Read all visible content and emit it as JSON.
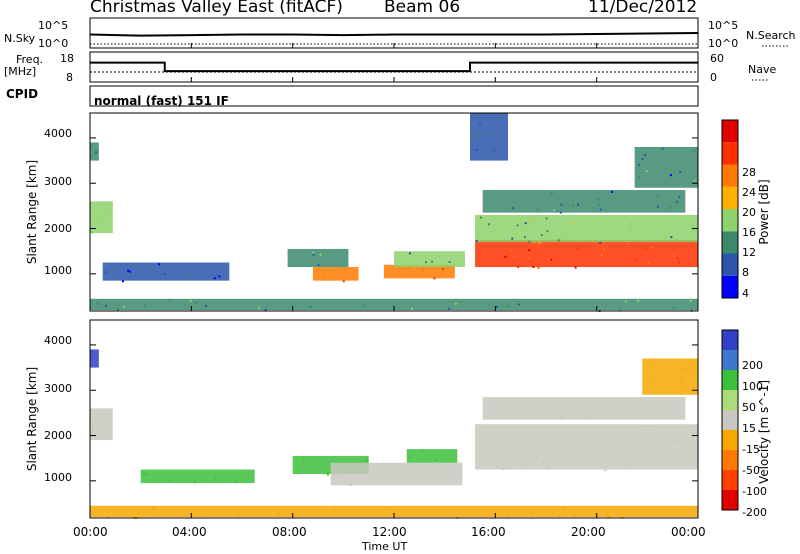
{
  "header": {
    "station": "Christmas Valley East (fitACF)",
    "beam": "Beam 06",
    "date": "11/Dec/2012"
  },
  "colors": {
    "power_scale": [
      "#0000ff",
      "#2a55a8",
      "#3b8a6c",
      "#8dd26c",
      "#ffb000",
      "#ff7a00",
      "#ff3000",
      "#e00000"
    ],
    "velocity_scale": [
      "#3040c8",
      "#3c78cc",
      "#3cc03c",
      "#aadc78",
      "#c8c8c0",
      "#f5a800",
      "#ff7800",
      "#ff4000",
      "#e00000"
    ]
  },
  "chart_data": [
    {
      "panel": "noise",
      "type": "line",
      "left_label": "N.Sky",
      "right_label": "N.Search",
      "left_ticks": [
        "10^5",
        "10^0"
      ],
      "right_ticks": [
        "10^5",
        "10^0"
      ],
      "x": [
        0,
        2,
        4,
        6,
        8,
        10,
        12,
        14,
        15,
        16,
        18,
        20,
        22,
        24
      ],
      "series": [
        {
          "values": [
            2.2,
            2.0,
            2.1,
            2.2,
            2.2,
            2.1,
            2.2,
            2.2,
            2.2,
            2.2,
            2.2,
            2.3,
            2.4,
            2.5
          ]
        }
      ]
    },
    {
      "panel": "frequency",
      "type": "line",
      "left_label_line1": "Freq.",
      "left_label_line2": "[MHz]",
      "right_label": "Nave",
      "left_ticks": [
        18,
        8
      ],
      "right_ticks": [
        60,
        0
      ],
      "ylim": [
        8,
        18
      ],
      "x": [
        0,
        2.95,
        2.95,
        15.0,
        15.0,
        24
      ],
      "series": [
        {
          "values": [
            14.7,
            14.7,
            11.4,
            11.4,
            14.7,
            14.7
          ]
        }
      ]
    },
    {
      "panel": "cpid",
      "type": "table",
      "left_label": "CPID",
      "mode": "normal (fast) 151 IF"
    },
    {
      "panel": "power",
      "type": "heatmap",
      "ylabel": "Slant Range [km]",
      "yticks": [
        1000,
        2000,
        3000,
        4000
      ],
      "ylim": [
        180,
        4550
      ],
      "xlim": [
        0,
        24
      ],
      "colorbar_label": "Power [dB]",
      "colorbar_ticks": [
        4,
        8,
        12,
        16,
        20,
        24,
        28
      ],
      "colorbar_range": [
        0,
        32
      ],
      "regions": [
        {
          "x0": 0,
          "x1": 24,
          "r0": 200,
          "r1": 450,
          "v": 9
        },
        {
          "x0": 0,
          "x1": 0.9,
          "r0": 1900,
          "r1": 2600,
          "v": 12
        },
        {
          "x0": 0,
          "x1": 0.35,
          "r0": 3500,
          "r1": 3900,
          "v": 8
        },
        {
          "x0": 0.5,
          "x1": 5.5,
          "r0": 850,
          "r1": 1250,
          "v": 7
        },
        {
          "x0": 7.8,
          "x1": 10.2,
          "r0": 1150,
          "r1": 1550,
          "v": 9
        },
        {
          "x0": 8.8,
          "x1": 10.6,
          "r0": 850,
          "r1": 1150,
          "v": 22
        },
        {
          "x0": 11.6,
          "x1": 14.4,
          "r0": 900,
          "r1": 1200,
          "v": 22
        },
        {
          "x0": 12.0,
          "x1": 14.8,
          "r0": 1150,
          "r1": 1500,
          "v": 12
        },
        {
          "x0": 15.2,
          "x1": 24,
          "r0": 1150,
          "r1": 1750,
          "v": 24
        },
        {
          "x0": 15.2,
          "x1": 24,
          "r0": 1700,
          "r1": 2300,
          "v": 12
        },
        {
          "x0": 15.5,
          "x1": 23.5,
          "r0": 2350,
          "r1": 2850,
          "v": 8
        },
        {
          "x0": 15.0,
          "x1": 16.5,
          "r0": 3500,
          "r1": 4550,
          "v": 7
        },
        {
          "x0": 21.5,
          "x1": 24,
          "r0": 2900,
          "r1": 3800,
          "v": 8
        }
      ]
    },
    {
      "panel": "velocity",
      "type": "heatmap",
      "ylabel": "Slant Range [km]",
      "yticks": [
        1000,
        2000,
        3000,
        4000
      ],
      "ylim": [
        180,
        4550
      ],
      "xlim": [
        0,
        24
      ],
      "colorbar_label": "Velocity [m s^-1]",
      "colorbar_ticks": [
        200,
        100,
        50,
        15,
        -15,
        -50,
        -100,
        -200
      ],
      "regions": [
        {
          "x0": 0,
          "x1": 24,
          "r0": 200,
          "r1": 450,
          "v": -50
        },
        {
          "x0": 0,
          "x1": 0.9,
          "r0": 1900,
          "r1": 2600,
          "v": 0
        },
        {
          "x0": 0,
          "x1": 0.35,
          "r0": 3500,
          "r1": 3900,
          "v": 200
        },
        {
          "x0": 2.0,
          "x1": 6.5,
          "r0": 950,
          "r1": 1250,
          "v": 40
        },
        {
          "x0": 8.0,
          "x1": 11.0,
          "r0": 1150,
          "r1": 1550,
          "v": 40
        },
        {
          "x0": 9.5,
          "x1": 14.7,
          "r0": 900,
          "r1": 1400,
          "v": 0
        },
        {
          "x0": 12.5,
          "x1": 14.5,
          "r0": 1400,
          "r1": 1700,
          "v": 40
        },
        {
          "x0": 15.2,
          "x1": 24,
          "r0": 1250,
          "r1": 2250,
          "v": 0
        },
        {
          "x0": 15.5,
          "x1": 23.5,
          "r0": 2350,
          "r1": 2850,
          "v": 0
        },
        {
          "x0": 21.8,
          "x1": 24,
          "r0": 2900,
          "r1": 3700,
          "v": -50
        }
      ]
    }
  ],
  "x_axis": {
    "label": "Time UT",
    "ticks": [
      "00:00",
      "04:00",
      "08:00",
      "12:00",
      "16:00",
      "20:00",
      "00:00"
    ]
  }
}
